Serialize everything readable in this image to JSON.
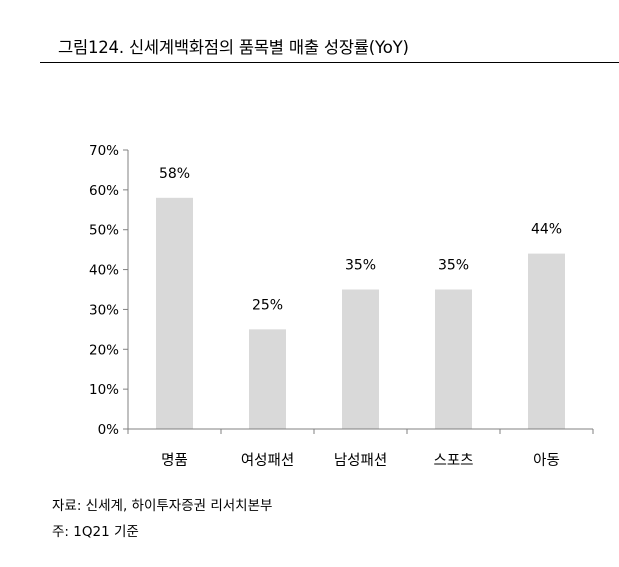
{
  "figure": {
    "title": "그림124.  신세계백화점의 품목별 매출 성장률(YoY)",
    "source": "자료: 신세계, 하이투자증권 리서치본부",
    "note": "주: 1Q21 기준"
  },
  "colors": {
    "bar": "#d9d9d9",
    "axis": "#808080",
    "text": "#000000"
  },
  "chart_data": {
    "type": "bar",
    "title": "그림124.  신세계백화점의 품목별 매출 성장률(YoY)",
    "categories": [
      "명품",
      "여성패션",
      "남성패션",
      "스포츠",
      "아동"
    ],
    "values": [
      58,
      25,
      35,
      35,
      44
    ],
    "value_labels": [
      "58%",
      "25%",
      "35%",
      "35%",
      "44%"
    ],
    "ylim": [
      0,
      70
    ],
    "yticks": [
      0,
      10,
      20,
      30,
      40,
      50,
      60,
      70
    ],
    "ytick_labels": [
      "0%",
      "10%",
      "20%",
      "30%",
      "40%",
      "50%",
      "60%",
      "70%"
    ],
    "unit": "%",
    "grid": false,
    "legend": "none"
  }
}
